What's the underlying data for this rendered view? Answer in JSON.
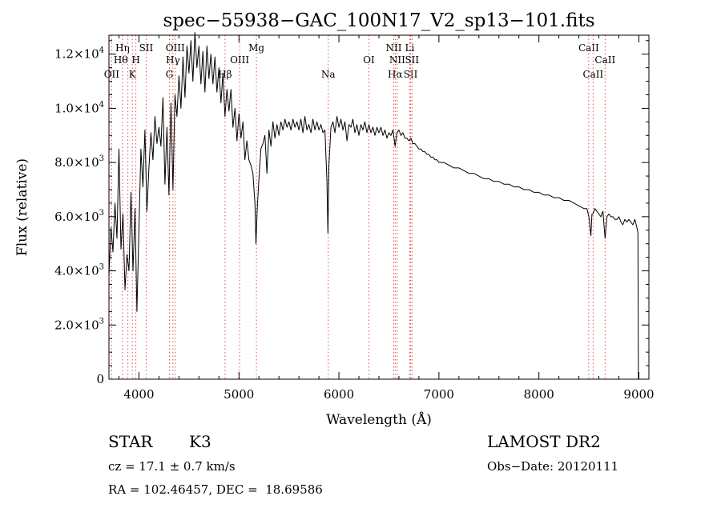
{
  "chart_data": {
    "type": "line",
    "title": "spec−55938−GAC_100N17_V2_sp13−101.fits",
    "xlabel": "Wavelength (Å)",
    "ylabel": "Flux (relative)",
    "xlim": [
      3700,
      9100
    ],
    "ylim": [
      0,
      12700
    ],
    "x_ticks": [
      {
        "value": 4000,
        "label": "4000"
      },
      {
        "value": 5000,
        "label": "5000"
      },
      {
        "value": 6000,
        "label": "6000"
      },
      {
        "value": 7000,
        "label": "7000"
      },
      {
        "value": 8000,
        "label": "8000"
      },
      {
        "value": 9000,
        "label": "9000"
      }
    ],
    "y_ticks": [
      {
        "value": 0,
        "mant": "0",
        "exp": ""
      },
      {
        "value": 2000,
        "mant": "2.0×10",
        "exp": "3"
      },
      {
        "value": 4000,
        "mant": "4.0×10",
        "exp": "3"
      },
      {
        "value": 6000,
        "mant": "6.0×10",
        "exp": "3"
      },
      {
        "value": 8000,
        "mant": "8.0×10",
        "exp": "3"
      },
      {
        "value": 10000,
        "mant": "1.0×10",
        "exp": "4"
      },
      {
        "value": 12000,
        "mant": "1.2×10",
        "exp": "4"
      }
    ],
    "grid": false,
    "series": [
      {
        "line_color": "#000000",
        "points": [
          [
            3700,
            3800
          ],
          [
            3720,
            5600
          ],
          [
            3740,
            4700
          ],
          [
            3760,
            6500
          ],
          [
            3780,
            5200
          ],
          [
            3800,
            8500
          ],
          [
            3820,
            4800
          ],
          [
            3840,
            6100
          ],
          [
            3860,
            3300
          ],
          [
            3880,
            4600
          ],
          [
            3900,
            4000
          ],
          [
            3920,
            6900
          ],
          [
            3940,
            4000
          ],
          [
            3960,
            6300
          ],
          [
            3980,
            2500
          ],
          [
            4000,
            5500
          ],
          [
            4020,
            8500
          ],
          [
            4040,
            7100
          ],
          [
            4060,
            9200
          ],
          [
            4080,
            6200
          ],
          [
            4100,
            7800
          ],
          [
            4120,
            9100
          ],
          [
            4140,
            8100
          ],
          [
            4160,
            9700
          ],
          [
            4180,
            8700
          ],
          [
            4200,
            9300
          ],
          [
            4220,
            8600
          ],
          [
            4240,
            10400
          ],
          [
            4260,
            7200
          ],
          [
            4280,
            9300
          ],
          [
            4300,
            6800
          ],
          [
            4320,
            10200
          ],
          [
            4340,
            7000
          ],
          [
            4360,
            10500
          ],
          [
            4380,
            9700
          ],
          [
            4400,
            11200
          ],
          [
            4420,
            10000
          ],
          [
            4440,
            11900
          ],
          [
            4460,
            10400
          ],
          [
            4480,
            12300
          ],
          [
            4500,
            11300
          ],
          [
            4520,
            12500
          ],
          [
            4540,
            11000
          ],
          [
            4560,
            12800
          ],
          [
            4580,
            11500
          ],
          [
            4600,
            12300
          ],
          [
            4620,
            10900
          ],
          [
            4640,
            12100
          ],
          [
            4660,
            10600
          ],
          [
            4680,
            12300
          ],
          [
            4700,
            11100
          ],
          [
            4720,
            12000
          ],
          [
            4740,
            10900
          ],
          [
            4760,
            11900
          ],
          [
            4780,
            10600
          ],
          [
            4800,
            11500
          ],
          [
            4820,
            10200
          ],
          [
            4840,
            11300
          ],
          [
            4860,
            9700
          ],
          [
            4880,
            10700
          ],
          [
            4900,
            9900
          ],
          [
            4920,
            10700
          ],
          [
            4940,
            9300
          ],
          [
            4960,
            10000
          ],
          [
            4980,
            8800
          ],
          [
            5000,
            9800
          ],
          [
            5020,
            8900
          ],
          [
            5040,
            9500
          ],
          [
            5060,
            8100
          ],
          [
            5080,
            8800
          ],
          [
            5100,
            8100
          ],
          [
            5120,
            7900
          ],
          [
            5140,
            7600
          ],
          [
            5160,
            6500
          ],
          [
            5170,
            5000
          ],
          [
            5183,
            6300
          ],
          [
            5200,
            7400
          ],
          [
            5220,
            8500
          ],
          [
            5240,
            8700
          ],
          [
            5260,
            9000
          ],
          [
            5280,
            7600
          ],
          [
            5300,
            9200
          ],
          [
            5320,
            8600
          ],
          [
            5340,
            9500
          ],
          [
            5360,
            8900
          ],
          [
            5380,
            9400
          ],
          [
            5400,
            9000
          ],
          [
            5420,
            9500
          ],
          [
            5440,
            9200
          ],
          [
            5460,
            9600
          ],
          [
            5480,
            9300
          ],
          [
            5500,
            9500
          ],
          [
            5520,
            9200
          ],
          [
            5540,
            9600
          ],
          [
            5560,
            9300
          ],
          [
            5580,
            9500
          ],
          [
            5600,
            9200
          ],
          [
            5620,
            9600
          ],
          [
            5640,
            9100
          ],
          [
            5660,
            9700
          ],
          [
            5680,
            9200
          ],
          [
            5700,
            9400
          ],
          [
            5720,
            9100
          ],
          [
            5740,
            9600
          ],
          [
            5760,
            9200
          ],
          [
            5780,
            9500
          ],
          [
            5800,
            9200
          ],
          [
            5820,
            9400
          ],
          [
            5840,
            9100
          ],
          [
            5860,
            9200
          ],
          [
            5880,
            7300
          ],
          [
            5890,
            5400
          ],
          [
            5900,
            7900
          ],
          [
            5920,
            9300
          ],
          [
            5940,
            9500
          ],
          [
            5960,
            9100
          ],
          [
            5980,
            9700
          ],
          [
            6000,
            9300
          ],
          [
            6020,
            9600
          ],
          [
            6040,
            9200
          ],
          [
            6060,
            9500
          ],
          [
            6080,
            8800
          ],
          [
            6100,
            9400
          ],
          [
            6120,
            9300
          ],
          [
            6140,
            9600
          ],
          [
            6160,
            9100
          ],
          [
            6180,
            9400
          ],
          [
            6200,
            9000
          ],
          [
            6220,
            9400
          ],
          [
            6240,
            9200
          ],
          [
            6260,
            9500
          ],
          [
            6280,
            9100
          ],
          [
            6300,
            9400
          ],
          [
            6320,
            9100
          ],
          [
            6340,
            9300
          ],
          [
            6360,
            9000
          ],
          [
            6380,
            9300
          ],
          [
            6400,
            9100
          ],
          [
            6420,
            9300
          ],
          [
            6440,
            9000
          ],
          [
            6460,
            9200
          ],
          [
            6480,
            8900
          ],
          [
            6500,
            9100
          ],
          [
            6520,
            9000
          ],
          [
            6540,
            9200
          ],
          [
            6562,
            8600
          ],
          [
            6580,
            9100
          ],
          [
            6600,
            9200
          ],
          [
            6620,
            9000
          ],
          [
            6640,
            9100
          ],
          [
            6660,
            8900
          ],
          [
            6680,
            8900
          ],
          [
            6700,
            8800
          ],
          [
            6720,
            8900
          ],
          [
            6740,
            8700
          ],
          [
            6760,
            8700
          ],
          [
            6780,
            8600
          ],
          [
            6800,
            8500
          ],
          [
            6820,
            8500
          ],
          [
            6840,
            8400
          ],
          [
            6860,
            8400
          ],
          [
            6880,
            8300
          ],
          [
            6900,
            8300
          ],
          [
            6920,
            8200
          ],
          [
            6940,
            8200
          ],
          [
            6960,
            8100
          ],
          [
            6980,
            8100
          ],
          [
            7000,
            8000
          ],
          [
            7050,
            8000
          ],
          [
            7100,
            7900
          ],
          [
            7150,
            7800
          ],
          [
            7200,
            7800
          ],
          [
            7250,
            7700
          ],
          [
            7300,
            7600
          ],
          [
            7350,
            7600
          ],
          [
            7400,
            7500
          ],
          [
            7450,
            7400
          ],
          [
            7500,
            7400
          ],
          [
            7550,
            7300
          ],
          [
            7600,
            7300
          ],
          [
            7650,
            7200
          ],
          [
            7700,
            7200
          ],
          [
            7750,
            7100
          ],
          [
            7800,
            7100
          ],
          [
            7850,
            7000
          ],
          [
            7900,
            7000
          ],
          [
            7950,
            6900
          ],
          [
            8000,
            6900
          ],
          [
            8050,
            6800
          ],
          [
            8100,
            6800
          ],
          [
            8150,
            6700
          ],
          [
            8200,
            6700
          ],
          [
            8250,
            6600
          ],
          [
            8300,
            6600
          ],
          [
            8350,
            6500
          ],
          [
            8400,
            6400
          ],
          [
            8450,
            6300
          ],
          [
            8480,
            6300
          ],
          [
            8500,
            6000
          ],
          [
            8520,
            5300
          ],
          [
            8530,
            6100
          ],
          [
            8540,
            6100
          ],
          [
            8560,
            6300
          ],
          [
            8580,
            6200
          ],
          [
            8600,
            6100
          ],
          [
            8620,
            6000
          ],
          [
            8640,
            6200
          ],
          [
            8662,
            5200
          ],
          [
            8680,
            6000
          ],
          [
            8700,
            6100
          ],
          [
            8720,
            6000
          ],
          [
            8740,
            6000
          ],
          [
            8760,
            5900
          ],
          [
            8780,
            5900
          ],
          [
            8800,
            6000
          ],
          [
            8820,
            5800
          ],
          [
            8840,
            5700
          ],
          [
            8860,
            5900
          ],
          [
            8880,
            5800
          ],
          [
            8900,
            5900
          ],
          [
            8920,
            5800
          ],
          [
            8940,
            5700
          ],
          [
            8960,
            5900
          ],
          [
            8980,
            5600
          ],
          [
            8990,
            5400
          ],
          [
            8995,
            0
          ]
        ]
      }
    ],
    "line_markers": {
      "color": "#e05050",
      "lines": [
        {
          "label": "OII",
          "wl": 3727,
          "row": 2,
          "anchor": "middle"
        },
        {
          "label": "Hη",
          "wl": 3835,
          "row": 0,
          "anchor": "middle"
        },
        {
          "label": "Hθ",
          "wl": 3889,
          "row": 1,
          "anchor": "end"
        },
        {
          "label": "K",
          "wl": 3934,
          "row": 2,
          "anchor": "middle"
        },
        {
          "label": "H",
          "wl": 3969,
          "row": 1,
          "anchor": "middle"
        },
        {
          "label": "SII",
          "wl": 4072,
          "row": 0,
          "anchor": "middle"
        },
        {
          "label": "G",
          "wl": 4305,
          "row": 2,
          "anchor": "middle"
        },
        {
          "label": "Hγ",
          "wl": 4340,
          "row": 1,
          "anchor": "middle"
        },
        {
          "label": "OIII",
          "wl": 4363,
          "row": 0,
          "anchor": "middle"
        },
        {
          "label": "Hβ",
          "wl": 4861,
          "row": 2,
          "anchor": "middle"
        },
        {
          "label": "OIII",
          "wl": 5007,
          "row": 1,
          "anchor": "middle"
        },
        {
          "label": "Mg",
          "wl": 5175,
          "row": 0,
          "anchor": "middle"
        },
        {
          "label": "Na",
          "wl": 5893,
          "row": 2,
          "anchor": "middle"
        },
        {
          "label": "OI",
          "wl": 6300,
          "row": 1,
          "anchor": "middle"
        },
        {
          "label": "NII",
          "wl": 6548,
          "row": 0,
          "anchor": "middle"
        },
        {
          "label": "Hα",
          "wl": 6563,
          "row": 2,
          "anchor": "middle"
        },
        {
          "label": "NII",
          "wl": 6583,
          "row": 1,
          "anchor": "middle"
        },
        {
          "label": "Li",
          "wl": 6708,
          "row": 0,
          "anchor": "middle"
        },
        {
          "label": "SII",
          "wl": 6717,
          "row": 2,
          "anchor": "middle"
        },
        {
          "label": "SII",
          "wl": 6731,
          "row": 1,
          "anchor": "middle"
        },
        {
          "label": "CaII",
          "wl": 8498,
          "row": 0,
          "anchor": "middle"
        },
        {
          "label": "CaII",
          "wl": 8542,
          "row": 2,
          "anchor": "middle"
        },
        {
          "label": "CaII",
          "wl": 8662,
          "row": 1,
          "anchor": "middle"
        }
      ]
    }
  },
  "info": {
    "class_label": "STAR",
    "subclass": "K3",
    "cz": "cz = 17.1 ± 0.7 km/s",
    "radec": "RA = 102.46457, DEC =  18.69586",
    "survey": "LAMOST DR2",
    "obs_date": "Obs−Date: 20120111"
  }
}
